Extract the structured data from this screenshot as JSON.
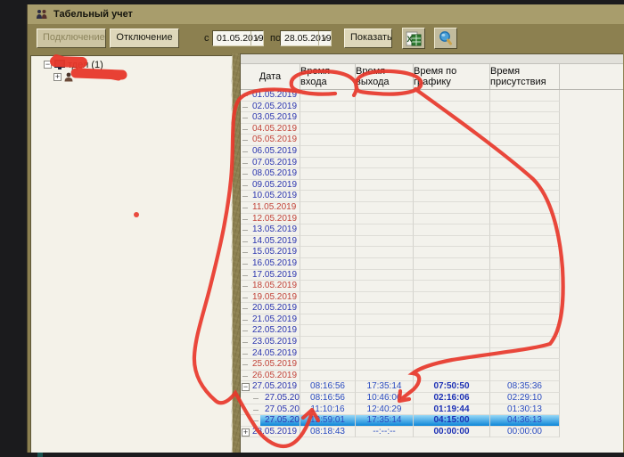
{
  "window": {
    "title": "Табельный учет"
  },
  "toolbar": {
    "connect_button": "Подключение",
    "disconnect_button": "Отключение",
    "date_from_label": "с",
    "date_from_value": "01.05.2019",
    "date_to_label": "по",
    "date_to_value": "28.05.2019",
    "show_button": "Показать",
    "combo_chevron": "∨",
    "icons": {
      "excel": "excel-export-icon",
      "magnifier": "magnifier-icon"
    }
  },
  "tree": {
    "root": {
      "visible_label": "тдел (1)",
      "expand_glyph": "−",
      "redacted": true
    },
    "child": {
      "visible_label": "",
      "expand_glyph": "+",
      "redacted": true
    }
  },
  "grid": {
    "columns": [
      "Дата",
      "Время входа",
      "Время выхода",
      "Время по графику",
      "Время присутствия"
    ],
    "rows": [
      {
        "date": "01.05.2019",
        "red": false,
        "level": 0,
        "expand": null,
        "in": "",
        "out": "",
        "sched": "",
        "pres": "",
        "selected": false
      },
      {
        "date": "02.05.2019",
        "red": false,
        "level": 0,
        "expand": null,
        "in": "",
        "out": "",
        "sched": "",
        "pres": "",
        "selected": false
      },
      {
        "date": "03.05.2019",
        "red": false,
        "level": 0,
        "expand": null,
        "in": "",
        "out": "",
        "sched": "",
        "pres": "",
        "selected": false
      },
      {
        "date": "04.05.2019",
        "red": true,
        "level": 0,
        "expand": null,
        "in": "",
        "out": "",
        "sched": "",
        "pres": "",
        "selected": false
      },
      {
        "date": "05.05.2019",
        "red": true,
        "level": 0,
        "expand": null,
        "in": "",
        "out": "",
        "sched": "",
        "pres": "",
        "selected": false
      },
      {
        "date": "06.05.2019",
        "red": false,
        "level": 0,
        "expand": null,
        "in": "",
        "out": "",
        "sched": "",
        "pres": "",
        "selected": false
      },
      {
        "date": "07.05.2019",
        "red": false,
        "level": 0,
        "expand": null,
        "in": "",
        "out": "",
        "sched": "",
        "pres": "",
        "selected": false
      },
      {
        "date": "08.05.2019",
        "red": false,
        "level": 0,
        "expand": null,
        "in": "",
        "out": "",
        "sched": "",
        "pres": "",
        "selected": false
      },
      {
        "date": "09.05.2019",
        "red": false,
        "level": 0,
        "expand": null,
        "in": "",
        "out": "",
        "sched": "",
        "pres": "",
        "selected": false
      },
      {
        "date": "10.05.2019",
        "red": false,
        "level": 0,
        "expand": null,
        "in": "",
        "out": "",
        "sched": "",
        "pres": "",
        "selected": false
      },
      {
        "date": "11.05.2019",
        "red": true,
        "level": 0,
        "expand": null,
        "in": "",
        "out": "",
        "sched": "",
        "pres": "",
        "selected": false
      },
      {
        "date": "12.05.2019",
        "red": true,
        "level": 0,
        "expand": null,
        "in": "",
        "out": "",
        "sched": "",
        "pres": "",
        "selected": false
      },
      {
        "date": "13.05.2019",
        "red": false,
        "level": 0,
        "expand": null,
        "in": "",
        "out": "",
        "sched": "",
        "pres": "",
        "selected": false
      },
      {
        "date": "14.05.2019",
        "red": false,
        "level": 0,
        "expand": null,
        "in": "",
        "out": "",
        "sched": "",
        "pres": "",
        "selected": false
      },
      {
        "date": "15.05.2019",
        "red": false,
        "level": 0,
        "expand": null,
        "in": "",
        "out": "",
        "sched": "",
        "pres": "",
        "selected": false
      },
      {
        "date": "16.05.2019",
        "red": false,
        "level": 0,
        "expand": null,
        "in": "",
        "out": "",
        "sched": "",
        "pres": "",
        "selected": false
      },
      {
        "date": "17.05.2019",
        "red": false,
        "level": 0,
        "expand": null,
        "in": "",
        "out": "",
        "sched": "",
        "pres": "",
        "selected": false
      },
      {
        "date": "18.05.2019",
        "red": true,
        "level": 0,
        "expand": null,
        "in": "",
        "out": "",
        "sched": "",
        "pres": "",
        "selected": false
      },
      {
        "date": "19.05.2019",
        "red": true,
        "level": 0,
        "expand": null,
        "in": "",
        "out": "",
        "sched": "",
        "pres": "",
        "selected": false
      },
      {
        "date": "20.05.2019",
        "red": false,
        "level": 0,
        "expand": null,
        "in": "",
        "out": "",
        "sched": "",
        "pres": "",
        "selected": false
      },
      {
        "date": "21.05.2019",
        "red": false,
        "level": 0,
        "expand": null,
        "in": "",
        "out": "",
        "sched": "",
        "pres": "",
        "selected": false
      },
      {
        "date": "22.05.2019",
        "red": false,
        "level": 0,
        "expand": null,
        "in": "",
        "out": "",
        "sched": "",
        "pres": "",
        "selected": false
      },
      {
        "date": "23.05.2019",
        "red": false,
        "level": 0,
        "expand": null,
        "in": "",
        "out": "",
        "sched": "",
        "pres": "",
        "selected": false
      },
      {
        "date": "24.05.2019",
        "red": false,
        "level": 0,
        "expand": null,
        "in": "",
        "out": "",
        "sched": "",
        "pres": "",
        "selected": false
      },
      {
        "date": "25.05.2019",
        "red": true,
        "level": 0,
        "expand": null,
        "in": "",
        "out": "",
        "sched": "",
        "pres": "",
        "selected": false
      },
      {
        "date": "26.05.2019",
        "red": true,
        "level": 0,
        "expand": null,
        "in": "",
        "out": "",
        "sched": "",
        "pres": "",
        "selected": false
      },
      {
        "date": "27.05.2019",
        "red": false,
        "level": 0,
        "expand": "minus",
        "in": "08:16:56",
        "out": "17:35:14",
        "sched": "07:50:50",
        "pres": "08:35:36",
        "selected": false
      },
      {
        "date": "27.05.20",
        "red": false,
        "level": 1,
        "expand": null,
        "in": "08:16:56",
        "out": "10:46:06",
        "sched": "02:16:06",
        "pres": "02:29:10",
        "selected": false
      },
      {
        "date": "27.05.20",
        "red": false,
        "level": 1,
        "expand": null,
        "in": "11:10:16",
        "out": "12:40:29",
        "sched": "01:19:44",
        "pres": "01:30:13",
        "selected": false
      },
      {
        "date": "27.05.20",
        "red": false,
        "level": 1,
        "expand": null,
        "in": "12:59:01",
        "out": "17:35:14",
        "sched": "04:15:00",
        "pres": "04:36:13",
        "selected": true
      },
      {
        "date": "28.05.2019",
        "red": false,
        "level": 0,
        "expand": "plus",
        "in": "08:18:43",
        "out": "--:--:--",
        "sched": "00:00:00",
        "pres": "00:00:00",
        "selected": false
      }
    ]
  },
  "annotations": {
    "marker_color": "#e8382b",
    "items": [
      "ellipse-around-entry-time-header",
      "ellipse-around-exit-time-header",
      "freehand-loop-down-date-column-with-up-arrow-to-12-59-01",
      "curve-down-right-side-with-arrow-to-exit-times",
      "redaction-scribble-root-node",
      "redaction-scribble-child-node",
      "red-dot-left-panel"
    ]
  }
}
